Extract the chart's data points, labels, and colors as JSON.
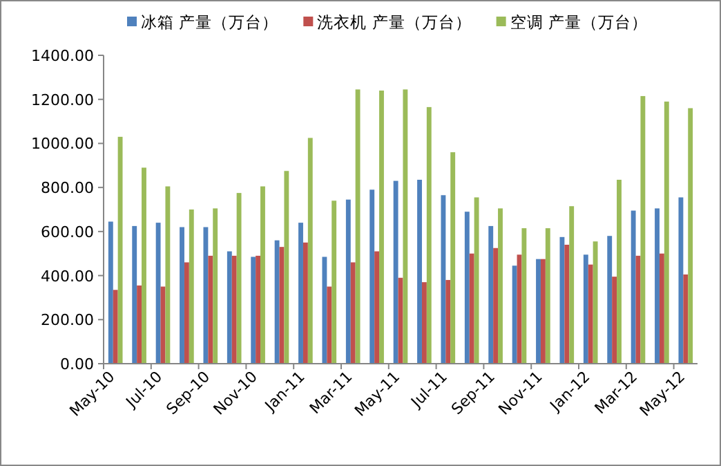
{
  "chart_data": {
    "type": "bar",
    "categories": [
      "May-10",
      null,
      "Jul-10",
      null,
      "Sep-10",
      null,
      "Nov-10",
      null,
      "Jan-11",
      null,
      "Mar-11",
      null,
      "May-11",
      null,
      "Jul-11",
      null,
      "Sep-11",
      null,
      "Nov-11",
      null,
      "Jan-12",
      null,
      "Mar-12",
      null,
      "May-12"
    ],
    "series": [
      {
        "name": "冰箱 产量（万台）",
        "color": "#4f81bd",
        "values": [
          645,
          625,
          640,
          620,
          620,
          510,
          485,
          560,
          640,
          485,
          745,
          790,
          830,
          835,
          765,
          690,
          625,
          445,
          475,
          575,
          495,
          580,
          695,
          705,
          755
        ]
      },
      {
        "name": "洗衣机 产量（万台）",
        "color": "#c0504d",
        "values": [
          335,
          355,
          350,
          460,
          490,
          490,
          490,
          530,
          550,
          350,
          460,
          510,
          390,
          370,
          380,
          500,
          525,
          495,
          475,
          540,
          450,
          395,
          490,
          500,
          405
        ]
      },
      {
        "name": "空调 产量（万台）",
        "color": "#9bbb59",
        "values": [
          1030,
          890,
          805,
          700,
          705,
          775,
          805,
          875,
          1025,
          740,
          1245,
          1240,
          1245,
          1165,
          960,
          755,
          705,
          615,
          615,
          715,
          555,
          835,
          1215,
          1190,
          1160
        ]
      }
    ],
    "ylim": [
      0,
      1400
    ],
    "yticks": [
      {
        "value": 0,
        "label": "0.00"
      },
      {
        "value": 200,
        "label": "200.00"
      },
      {
        "value": 400,
        "label": "400.00"
      },
      {
        "value": 600,
        "label": "600.00"
      },
      {
        "value": 800,
        "label": "800.00"
      },
      {
        "value": 1000,
        "label": "1000.00"
      },
      {
        "value": 1200,
        "label": "1200.00"
      },
      {
        "value": 1400,
        "label": "1400.00"
      }
    ],
    "legend": "top",
    "grid": false
  }
}
